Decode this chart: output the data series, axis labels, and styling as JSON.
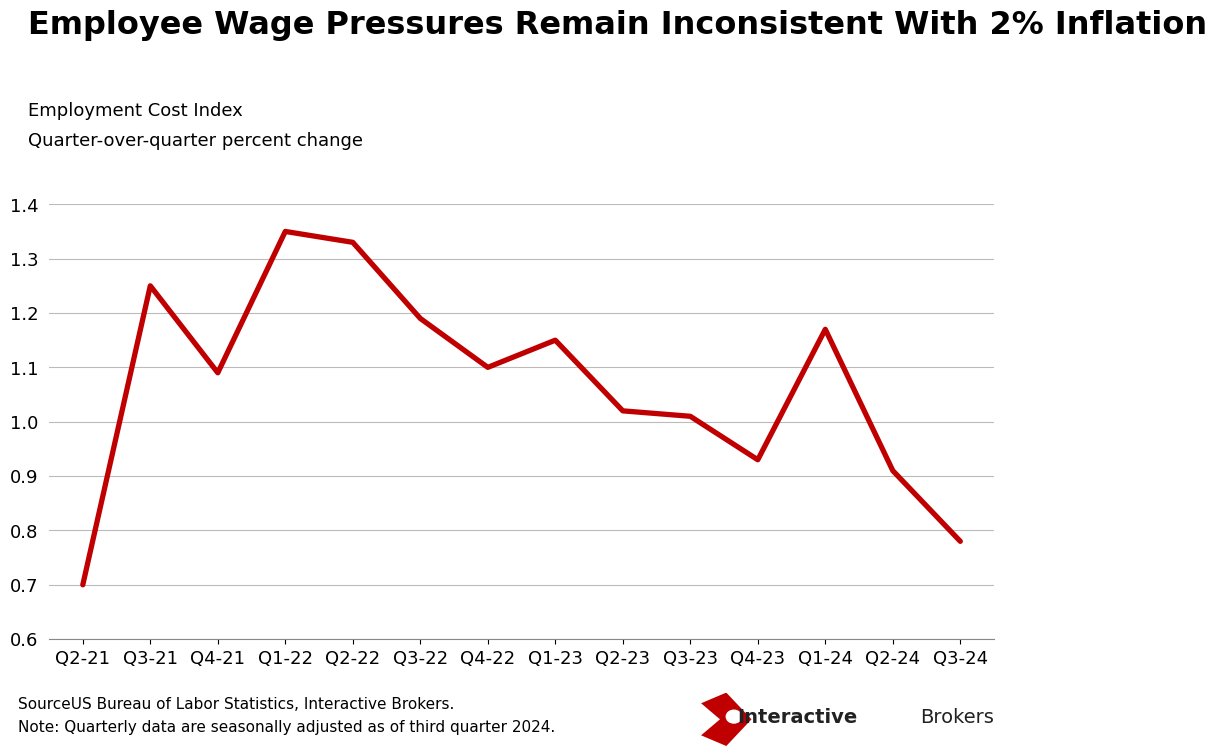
{
  "title": "Employee Wage Pressures Remain Inconsistent With 2% Inflation",
  "subtitle_line1": "Employment Cost Index",
  "subtitle_line2": "Quarter-over-quarter percent change",
  "x_labels": [
    "Q2-21",
    "Q3-21",
    "Q4-21",
    "Q1-22",
    "Q2-22",
    "Q3-22",
    "Q4-22",
    "Q1-23",
    "Q2-23",
    "Q3-23",
    "Q4-23",
    "Q1-24",
    "Q2-24",
    "Q3-24"
  ],
  "y_values": [
    0.7,
    1.25,
    1.09,
    1.35,
    1.33,
    1.19,
    1.1,
    1.15,
    1.02,
    1.01,
    0.93,
    1.17,
    0.91,
    0.78
  ],
  "line_color": "#C00000",
  "line_width": 3.8,
  "ylim": [
    0.6,
    1.4
  ],
  "yticks": [
    0.6,
    0.7,
    0.8,
    0.9,
    1.0,
    1.1,
    1.2,
    1.3,
    1.4
  ],
  "source_text": "SourceUS Bureau of Labor Statistics, Interactive Brokers.",
  "note_text": "Note: Quarterly data are seasonally adjusted as of third quarter 2024.",
  "background_color": "#ffffff",
  "grid_color": "#bbbbbb",
  "title_fontsize": 23,
  "subtitle_fontsize": 13,
  "tick_fontsize": 13,
  "source_fontsize": 11,
  "ib_text_color": "#222222",
  "ib_logo_color": "#C00000"
}
